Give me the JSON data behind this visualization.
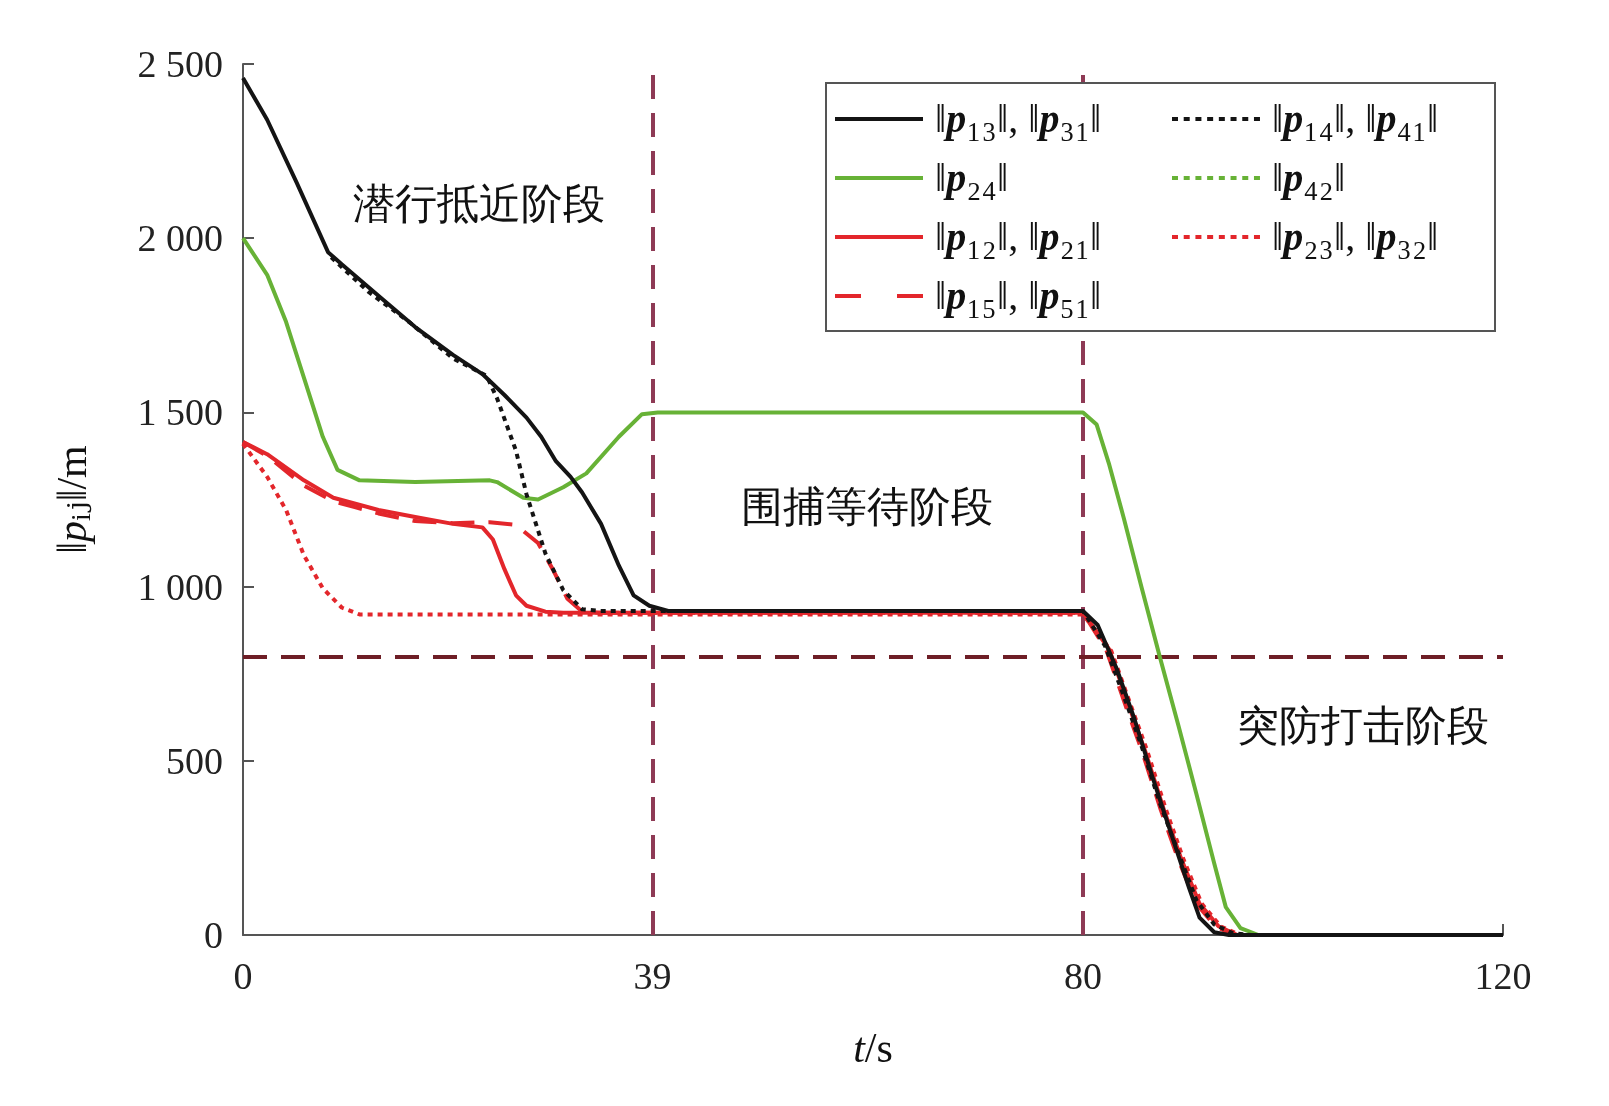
{
  "chart_data": {
    "type": "line",
    "xlabel": "t/s",
    "ylabel": "‖pᵢⱼ‖/m",
    "xlim": [
      0,
      120
    ],
    "xticks": [
      0,
      39,
      80,
      120
    ],
    "ylim": [
      0,
      2500
    ],
    "yticks": [
      0,
      500,
      {
        "value": 1000,
        "label": "1 000"
      },
      {
        "value": 1500,
        "label": "1 500"
      },
      {
        "value": 2000,
        "label": "2 000"
      },
      {
        "value": 2500,
        "label": "2 500"
      }
    ],
    "grid": false,
    "legend": "top right",
    "marker": "none",
    "series": [
      {
        "name": "‖p₁₃‖, ‖p₃₁‖",
        "color": "#141414",
        "line_style": "solid",
        "x": [
          0,
          2.3,
          5.1,
          8.1,
          9.4,
          12.9,
          16.4,
          20,
          22.8,
          24.9,
          27,
          28.4,
          29.8,
          31.2,
          32.3,
          34.1,
          35.8,
          37.2,
          38.7,
          40.5,
          80,
          81.4,
          83.2,
          84.9,
          86.6,
          88.4,
          90.1,
          91.1,
          92.5,
          93.9,
          120
        ],
        "values": [
          2460,
          2340,
          2160,
          1960,
          1925,
          1835,
          1745,
          1665,
          1610,
          1550,
          1485,
          1430,
          1360,
          1315,
          1270,
          1180,
          1060,
          975,
          945,
          930,
          930,
          890,
          765,
          620,
          455,
          290,
          135,
          50,
          8,
          0,
          0
        ]
      },
      {
        "name": "‖p₁₄‖, ‖p₄₁‖",
        "color": "#141414",
        "line_style": "dotted",
        "x": [
          8.4,
          12,
          15.8,
          20,
          23.2,
          24.2,
          26,
          27,
          28.8,
          30.5,
          32.3,
          34,
          80,
          82.1,
          83.9,
          85.6,
          87.3,
          89.1,
          90.8,
          92.5,
          94.3,
          96,
          120
        ],
        "values": [
          1945,
          1845,
          1760,
          1655,
          1605,
          1540,
          1390,
          1265,
          1095,
          990,
          935,
          930,
          930,
          830,
          685,
          540,
          380,
          235,
          100,
          30,
          5,
          0,
          0
        ]
      },
      {
        "name": "‖p₂₄‖",
        "color": "#67b236",
        "line_style": "solid",
        "x": [
          0,
          2.3,
          4.1,
          5.8,
          7.6,
          9,
          11.1,
          16.4,
          23.5,
          24.2,
          26.7,
          28.1,
          30.5,
          32.7,
          35.8,
          38,
          39.5,
          80,
          81.3,
          82.5,
          83.9,
          85.6,
          87.3,
          89.1,
          90.8,
          92.5,
          93.6,
          95,
          96.7,
          120
        ],
        "values": [
          2000,
          1895,
          1760,
          1600,
          1430,
          1335,
          1305,
          1300,
          1305,
          1300,
          1255,
          1250,
          1285,
          1325,
          1430,
          1495,
          1500,
          1500,
          1465,
          1350,
          1195,
          995,
          800,
          600,
          405,
          205,
          80,
          20,
          0,
          0
        ]
      },
      {
        "name": "‖p₄₂‖",
        "color": "#67b236",
        "line_style": "dotted"
      },
      {
        "name": "‖p₁₂‖, ‖p₂₁‖",
        "color": "#e3262b",
        "line_style": "solid",
        "x": [
          0,
          2.3,
          5.8,
          8.6,
          12.9,
          16.4,
          20,
          22.8,
          23.8,
          24.9,
          26,
          27,
          28.8,
          30.5,
          80,
          82.5,
          84.4,
          85.9,
          87.7,
          89.4,
          91.1,
          92.9,
          94.7,
          120
        ],
        "values": [
          1415,
          1380,
          1305,
          1255,
          1220,
          1200,
          1180,
          1170,
          1135,
          1050,
          975,
          945,
          928,
          925,
          925,
          820,
          655,
          530,
          360,
          215,
          90,
          25,
          0,
          0
        ]
      },
      {
        "name": "‖p₂₃‖, ‖p₃₂‖",
        "color": "#e3262b",
        "line_style": "dotted",
        "x": [
          0,
          2.3,
          4.1,
          5.8,
          7.6,
          9.4,
          11.1,
          80,
          82.7,
          84.6,
          86.1,
          87.9,
          89.6,
          91.3,
          93.1,
          95,
          120
        ],
        "values": [
          1410,
          1315,
          1220,
          1090,
          995,
          940,
          920,
          920,
          815,
          655,
          530,
          360,
          215,
          90,
          25,
          0,
          0
        ]
      },
      {
        "name": "‖p₁₅‖, ‖p₅₁‖",
        "color": "#e3262b",
        "line_style": "dashed",
        "x": [
          0,
          2.3,
          5.8,
          8.6,
          12.9,
          16.4,
          20,
          23.5,
          26,
          28.1,
          29.5,
          30.9,
          32.3,
          34,
          80,
          82.2,
          84.1,
          85.6,
          87.4,
          89.1,
          90.8,
          92.6,
          94.4,
          120
        ],
        "values": [
          1415,
          1375,
          1290,
          1245,
          1210,
          1188,
          1182,
          1185,
          1177,
          1125,
          1050,
          965,
          928,
          925,
          925,
          820,
          655,
          530,
          360,
          215,
          90,
          25,
          0,
          0
        ]
      }
    ],
    "ref_lines": [
      {
        "axis": "x",
        "value": 39,
        "color": "#8e3a55",
        "line_style": "dashed"
      },
      {
        "axis": "x",
        "value": 80,
        "color": "#8e3a55",
        "line_style": "dashed"
      },
      {
        "axis": "y",
        "value": 800,
        "color": "#6e1e26",
        "line_style": "dashed"
      }
    ],
    "annotations": [
      "潜行抵近阶段",
      "围捕等待阶段",
      "突防打击阶段"
    ]
  }
}
